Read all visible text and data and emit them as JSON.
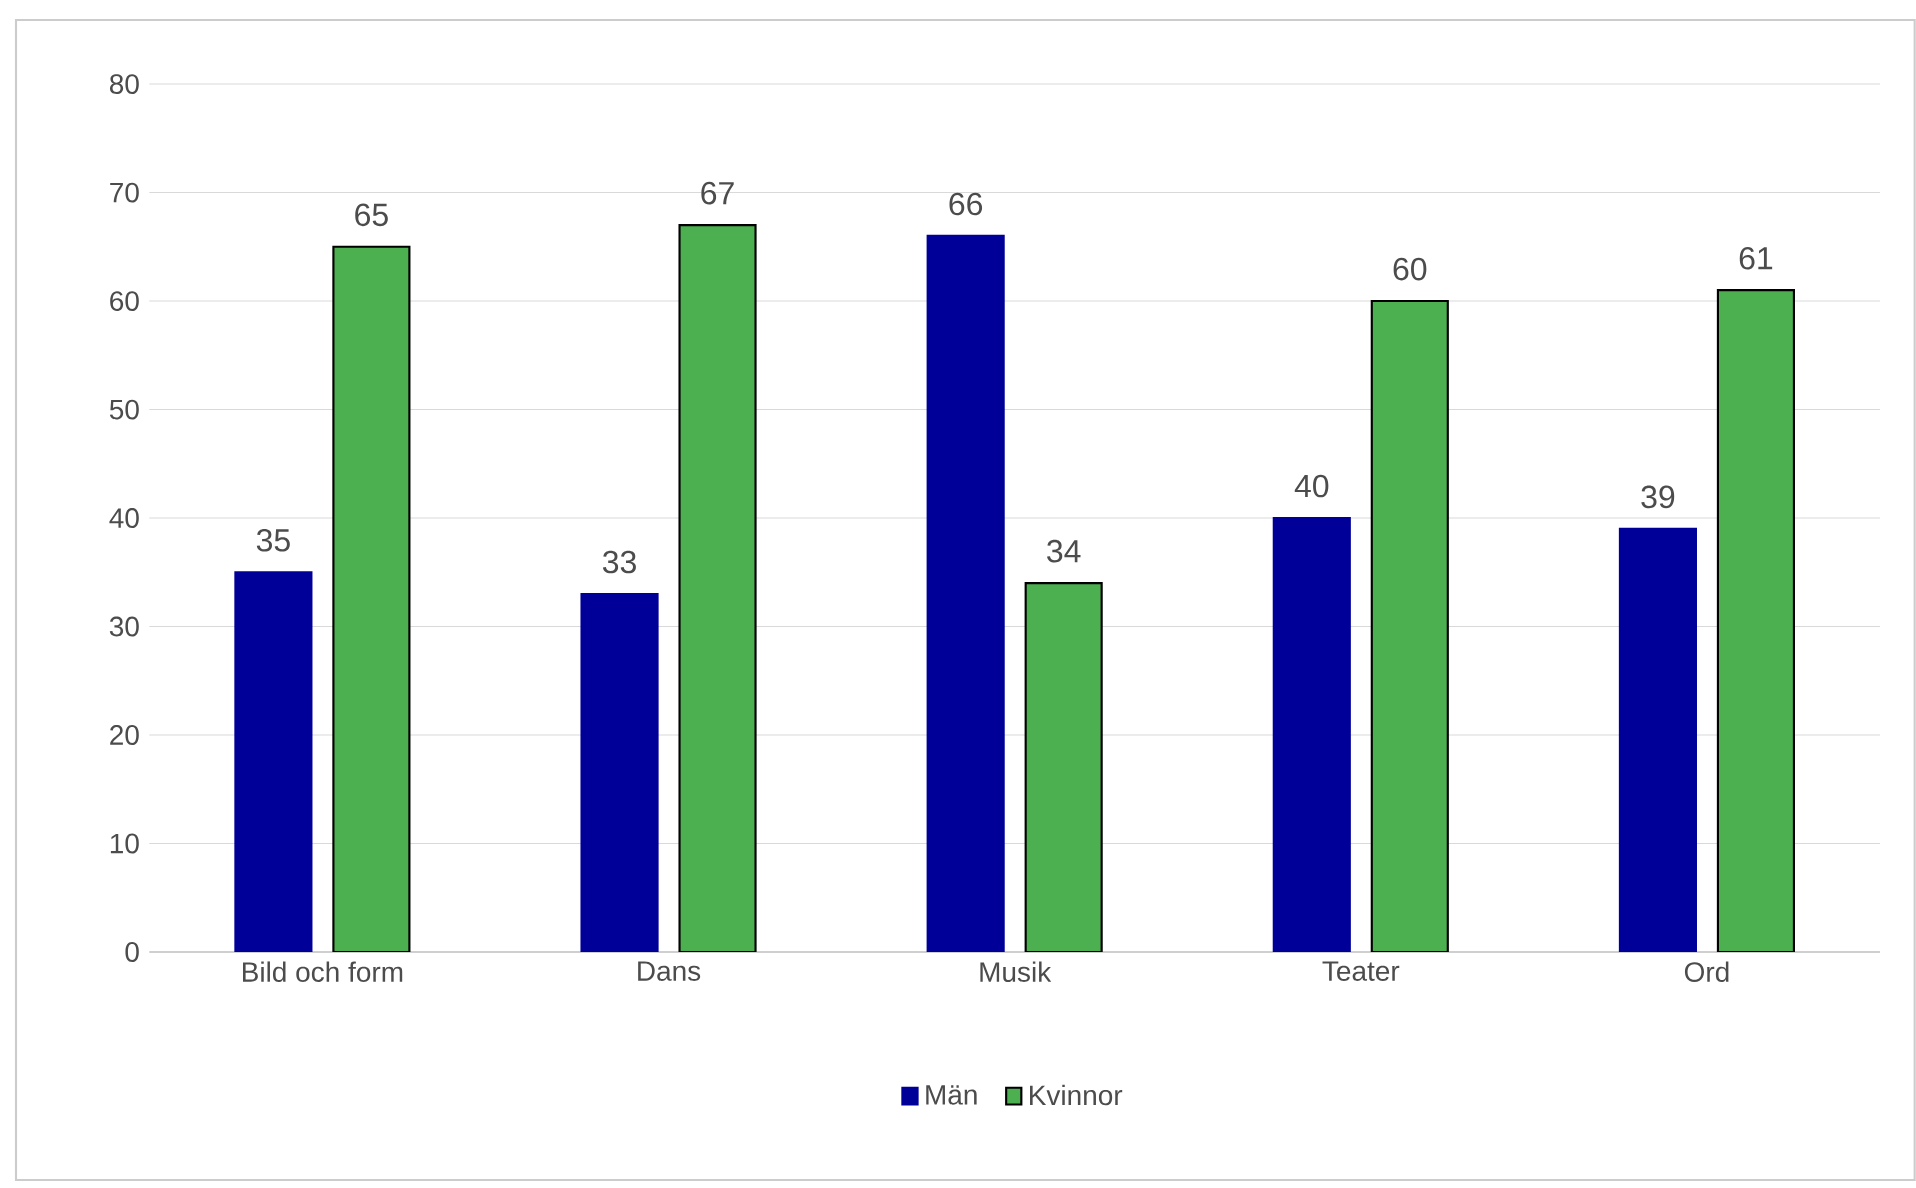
{
  "chart_data": {
    "type": "bar",
    "categories": [
      "Bild och form",
      "Dans",
      "Musik",
      "Teater",
      "Ord"
    ],
    "series": [
      {
        "name": "Män",
        "color": "#000099",
        "values": [
          35,
          33,
          66,
          40,
          39
        ]
      },
      {
        "name": "Kvinnor",
        "color": "#4caf50",
        "values": [
          65,
          67,
          34,
          60,
          61
        ]
      }
    ],
    "ylim": [
      0,
      80
    ],
    "yticks": [
      0,
      10,
      20,
      30,
      40,
      50,
      60,
      70,
      80
    ],
    "grid": "y",
    "legend": "bottom",
    "data_labels": true
  }
}
